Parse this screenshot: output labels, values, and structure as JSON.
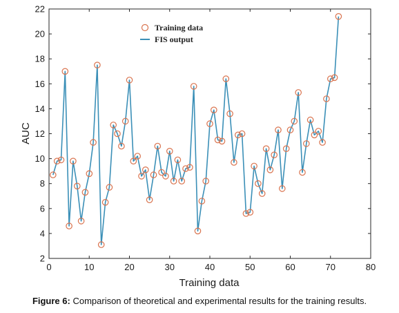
{
  "chart_data": {
    "type": "line",
    "xlabel": "Training data",
    "ylabel": "AUC",
    "xlim": [
      0,
      80
    ],
    "ylim": [
      2,
      22
    ],
    "xticks": [
      0,
      10,
      20,
      30,
      40,
      50,
      60,
      70,
      80
    ],
    "yticks": [
      2,
      4,
      6,
      8,
      10,
      12,
      14,
      16,
      18,
      20,
      22
    ],
    "grid": false,
    "legend_position": "top-center",
    "series": [
      {
        "name": "Training data",
        "style": "markers",
        "color": "#d9734e",
        "x": [
          1,
          2,
          3,
          4,
          5,
          6,
          7,
          8,
          9,
          10,
          11,
          12,
          13,
          14,
          15,
          16,
          17,
          18,
          19,
          20,
          21,
          22,
          23,
          24,
          25,
          26,
          27,
          28,
          29,
          30,
          31,
          32,
          33,
          34,
          35,
          36,
          37,
          38,
          39,
          40,
          41,
          42,
          43,
          44,
          45,
          46,
          47,
          48,
          49,
          50,
          51,
          52,
          53,
          54,
          55,
          56,
          57,
          58,
          59,
          60,
          61,
          62,
          63,
          64,
          65,
          66,
          67,
          68,
          69,
          70,
          71,
          72
        ],
        "y": [
          8.7,
          9.8,
          9.9,
          17.0,
          4.6,
          9.8,
          7.8,
          5.0,
          7.3,
          8.8,
          11.3,
          17.5,
          3.1,
          6.5,
          7.7,
          12.7,
          12.0,
          11.0,
          13.0,
          16.3,
          9.8,
          10.2,
          8.6,
          9.1,
          6.7,
          8.7,
          11.0,
          8.9,
          8.6,
          10.6,
          8.2,
          9.9,
          8.2,
          9.2,
          9.3,
          15.8,
          4.2,
          6.6,
          8.2,
          12.8,
          13.9,
          11.5,
          11.4,
          16.4,
          13.6,
          9.7,
          11.9,
          12.0,
          5.6,
          5.7,
          9.4,
          8.0,
          7.2,
          10.8,
          9.1,
          10.3,
          12.3,
          7.6,
          10.8,
          12.3,
          13.0,
          15.3,
          8.9,
          11.2,
          13.1,
          11.9,
          12.2,
          11.3,
          14.8,
          16.4,
          16.5,
          21.4
        ]
      },
      {
        "name": "FIS output",
        "style": "line",
        "color": "#3a8fb7",
        "x": [
          1,
          2,
          3,
          4,
          5,
          6,
          7,
          8,
          9,
          10,
          11,
          12,
          13,
          14,
          15,
          16,
          17,
          18,
          19,
          20,
          21,
          22,
          23,
          24,
          25,
          26,
          27,
          28,
          29,
          30,
          31,
          32,
          33,
          34,
          35,
          36,
          37,
          38,
          39,
          40,
          41,
          42,
          43,
          44,
          45,
          46,
          47,
          48,
          49,
          50,
          51,
          52,
          53,
          54,
          55,
          56,
          57,
          58,
          59,
          60,
          61,
          62,
          63,
          64,
          65,
          66,
          67,
          68,
          69,
          70,
          71,
          72
        ],
        "y": [
          8.7,
          9.8,
          9.9,
          17.0,
          4.6,
          9.8,
          7.8,
          5.0,
          7.3,
          8.8,
          11.3,
          17.5,
          3.1,
          6.5,
          7.7,
          12.7,
          12.0,
          11.0,
          13.0,
          16.3,
          9.8,
          10.2,
          8.6,
          9.1,
          6.7,
          8.7,
          11.0,
          8.9,
          8.6,
          10.6,
          8.2,
          9.9,
          8.2,
          9.2,
          9.3,
          15.8,
          4.2,
          6.6,
          8.2,
          12.8,
          13.9,
          11.5,
          11.4,
          16.4,
          13.6,
          9.7,
          11.9,
          12.0,
          5.6,
          5.7,
          9.4,
          8.0,
          7.2,
          10.8,
          9.1,
          10.3,
          12.3,
          7.6,
          10.8,
          12.3,
          13.0,
          15.3,
          8.9,
          11.2,
          13.1,
          11.9,
          12.2,
          11.3,
          14.8,
          16.4,
          16.5,
          21.4
        ]
      }
    ]
  },
  "caption": {
    "label": "Figure 6:",
    "text": " Comparison of theoretical and experimental results for the training results."
  }
}
